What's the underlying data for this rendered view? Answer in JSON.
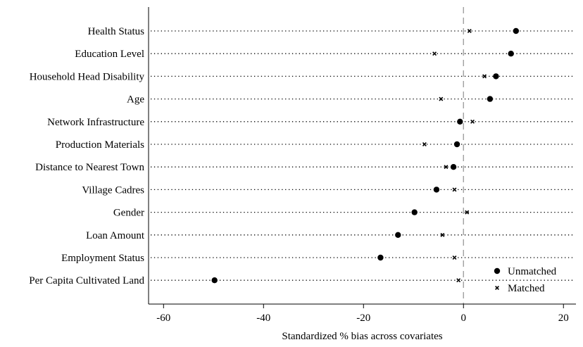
{
  "chart_data": {
    "type": "scatter",
    "categories": [
      "Health Status",
      "Education Level",
      "Household Head Disability",
      "Age",
      "Network Infrastructure",
      "Production Materials",
      "Distance to Nearest Town",
      "Village Cadres",
      "Gender",
      "Loan Amount",
      "Employment Status",
      "Per Capita Cultivated Land"
    ],
    "series": [
      {
        "name": "Unmatched",
        "marker": "circle",
        "values": [
          10.5,
          9.5,
          6.5,
          5.3,
          -0.7,
          -1.3,
          -2.0,
          -5.4,
          -9.8,
          -13.1,
          -16.6,
          -49.8
        ]
      },
      {
        "name": "Matched",
        "marker": "x",
        "values": [
          1.2,
          -5.8,
          4.2,
          -4.5,
          1.8,
          -7.8,
          -3.5,
          -1.8,
          0.7,
          -4.2,
          -1.8,
          -1.0
        ]
      }
    ],
    "xlabel": "Standardized % bias across covariates",
    "ylabel": "",
    "xlim": [
      -63,
      22.5
    ],
    "xticks": [
      -60,
      -40,
      -20,
      0,
      20
    ],
    "reference_line": 0,
    "grid": false,
    "legend_position": "bottom-right",
    "colors": {
      "marker": "#000000",
      "dotted_line": "#000000",
      "reference_line": "#a0a0a0",
      "axis": "#000000"
    }
  }
}
